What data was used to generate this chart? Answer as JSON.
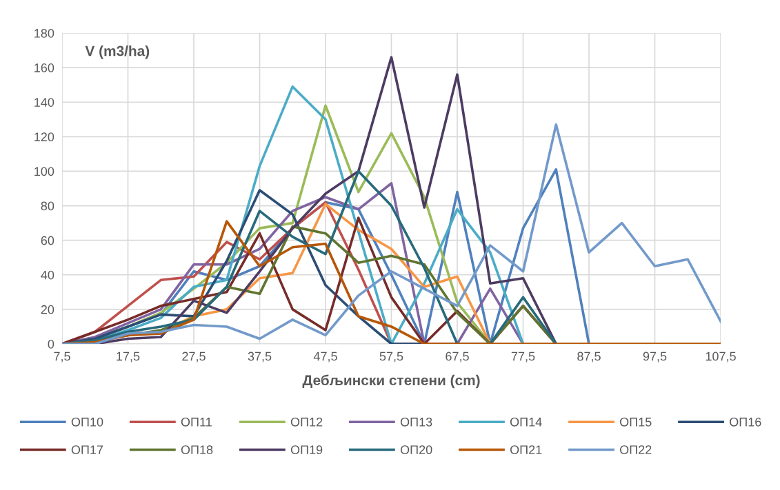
{
  "chart_data": {
    "type": "line",
    "ylabel": "V (m3/ha)",
    "xlabel": "Дебљински степени (cm)",
    "x": [
      7.5,
      12.5,
      17.5,
      22.5,
      27.5,
      32.5,
      37.5,
      42.5,
      47.5,
      52.5,
      57.5,
      62.5,
      67.5,
      72.5,
      77.5,
      82.5,
      87.5,
      92.5,
      97.5,
      102.5,
      107.5
    ],
    "xlim": [
      7.5,
      107.5
    ],
    "xticks": [
      {
        "value": 7.5,
        "label": "7,5"
      },
      {
        "value": 17.5,
        "label": "17,5"
      },
      {
        "value": 27.5,
        "label": "27,5"
      },
      {
        "value": 37.5,
        "label": "37,5"
      },
      {
        "value": 47.5,
        "label": "47,5"
      },
      {
        "value": 57.5,
        "label": "57,5"
      },
      {
        "value": 67.5,
        "label": "67,5"
      },
      {
        "value": 77.5,
        "label": "77,5"
      },
      {
        "value": 87.5,
        "label": "87,5"
      },
      {
        "value": 97.5,
        "label": "97,5"
      },
      {
        "value": 107.5,
        "label": "107,5"
      }
    ],
    "ylim": [
      0,
      180
    ],
    "yticks": [
      0,
      20,
      40,
      60,
      80,
      100,
      120,
      140,
      160,
      180
    ],
    "grid": true,
    "legend": "bottom",
    "marker": "none",
    "line_style": "solid",
    "series": [
      {
        "name": "ОП10",
        "color": "#4f81bd",
        "values": [
          0,
          3,
          10,
          17,
          42,
          37,
          45,
          67,
          82,
          78,
          40,
          0,
          88,
          0,
          67,
          101,
          0,
          null,
          null,
          null,
          null
        ]
      },
      {
        "name": "ОП11",
        "color": "#c0504d",
        "values": [
          0,
          7,
          22,
          37,
          39,
          59,
          49,
          67,
          82,
          43,
          0,
          0,
          null,
          0,
          22,
          0,
          null,
          null,
          null,
          null,
          null
        ]
      },
      {
        "name": "ОП12",
        "color": "#9bbb59",
        "values": [
          0,
          3,
          10,
          18,
          32,
          47,
          67,
          70,
          138,
          88,
          122,
          85,
          24,
          0,
          null,
          null,
          null,
          null,
          null,
          null,
          null
        ]
      },
      {
        "name": "ОП13",
        "color": "#8064a2",
        "values": [
          0,
          4,
          12,
          20,
          46,
          46,
          55,
          77,
          85,
          78,
          93,
          0,
          0,
          32,
          0,
          null,
          null,
          null,
          null,
          null,
          null
        ]
      },
      {
        "name": "ОП14",
        "color": "#4bacc6",
        "values": [
          0,
          2,
          8,
          15,
          33,
          37,
          103,
          149,
          130,
          65,
          0,
          35,
          78,
          53,
          0,
          null,
          null,
          null,
          null,
          null,
          null
        ]
      },
      {
        "name": "ОП15",
        "color": "#f79646",
        "values": [
          0,
          1,
          6,
          7,
          16,
          20,
          38,
          41,
          81,
          66,
          55,
          33,
          39,
          0,
          null,
          null,
          null,
          null,
          null,
          null,
          null
        ]
      },
      {
        "name": "ОП16",
        "color": "#2c4d75",
        "values": [
          0,
          3,
          10,
          17,
          16,
          48,
          89,
          75,
          34,
          16,
          0,
          0,
          null,
          null,
          null,
          null,
          null,
          null,
          null,
          null,
          null
        ]
      },
      {
        "name": "ОП17",
        "color": "#772c2a",
        "values": [
          0,
          7,
          14,
          22,
          26,
          30,
          64,
          20,
          8,
          73,
          27,
          0,
          19,
          0,
          22,
          0,
          null,
          null,
          null,
          null,
          null
        ]
      },
      {
        "name": "ОП18",
        "color": "#5f7530",
        "values": [
          0,
          2,
          5,
          8,
          15,
          33,
          29,
          68,
          64,
          47,
          51,
          46,
          18,
          0,
          22,
          0,
          null,
          null,
          null,
          null,
          null
        ]
      },
      {
        "name": "ОП19",
        "color": "#4d3b62",
        "values": [
          0,
          0,
          3,
          4,
          25,
          18,
          42,
          67,
          87,
          100,
          166,
          79,
          156,
          35,
          38,
          0,
          null,
          null,
          null,
          null,
          null
        ]
      },
      {
        "name": "ОП20",
        "color": "#276a7c",
        "values": [
          0,
          2,
          7,
          10,
          14,
          33,
          77,
          62,
          52,
          100,
          80,
          44,
          0,
          0,
          27,
          0,
          null,
          null,
          null,
          null,
          null
        ]
      },
      {
        "name": "ОП21",
        "color": "#b65708",
        "values": [
          0,
          1,
          5,
          6,
          14,
          71,
          45,
          56,
          58,
          16,
          10,
          0,
          0,
          0,
          0,
          0,
          0,
          0,
          0,
          0,
          0
        ]
      },
      {
        "name": "ОП22",
        "color": "#729aca",
        "values": [
          0,
          0,
          6,
          7,
          11,
          10,
          3,
          14,
          5,
          28,
          42,
          32,
          22,
          57,
          42,
          127,
          53,
          70,
          45,
          49,
          13
        ]
      }
    ]
  }
}
